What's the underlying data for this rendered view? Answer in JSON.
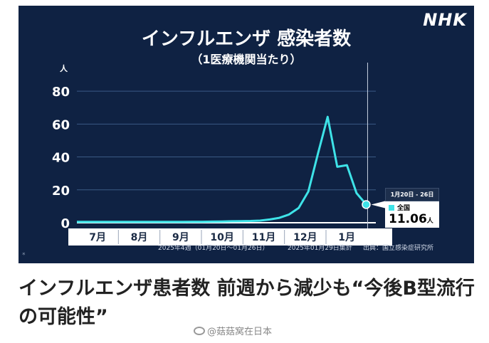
{
  "logo": "NHK",
  "colors": {
    "background": "#0f2243",
    "line": "#3ee3e8",
    "grid": "#3b5a84"
  },
  "chart_data": {
    "type": "line",
    "title": "インフルエンザ 感染者数",
    "subtitle": "（1医療機関当たり）",
    "ylabel": "人",
    "ylim": [
      0,
      90
    ],
    "yticks": [
      0,
      20,
      40,
      60,
      80
    ],
    "grid": true,
    "x_months": [
      "7月",
      "8月",
      "9月",
      "10月",
      "11月",
      "12月",
      "1月"
    ],
    "series": [
      {
        "name": "全国",
        "color": "#3ee3e8",
        "x": [
          0,
          1,
          2,
          3,
          4,
          5,
          6,
          7,
          8,
          9,
          10,
          11,
          12,
          13,
          14,
          15,
          16,
          17,
          18,
          19,
          20,
          21,
          22,
          23,
          24,
          25,
          26,
          27,
          28,
          29,
          30,
          31
        ],
        "values": [
          0.5,
          0.5,
          0.5,
          0.5,
          0.5,
          0.5,
          0.5,
          0.5,
          0.5,
          0.5,
          0.5,
          0.5,
          0.6,
          0.6,
          0.7,
          0.8,
          0.9,
          1.0,
          1.1,
          1.3,
          2.0,
          3.0,
          5.0,
          9.0,
          19.0,
          42.0,
          64.4,
          34.0,
          35.0,
          18.0,
          11.06,
          11.06
        ]
      }
    ],
    "tooltip": {
      "date": "1月20日 - 26日",
      "series": "全国",
      "value": "11.06",
      "unit": "人"
    },
    "footnotes": {
      "week": "2025年4週（01月20日〜01月26日）",
      "as_of": "2025年01月29日集計",
      "source": "出典：国立感染症研究所"
    },
    "marker": "*"
  },
  "headline": "インフルエンザ患者数 前週から減少も“今後B型流行の可能性”",
  "watermark": "@菇菇窝在日本"
}
